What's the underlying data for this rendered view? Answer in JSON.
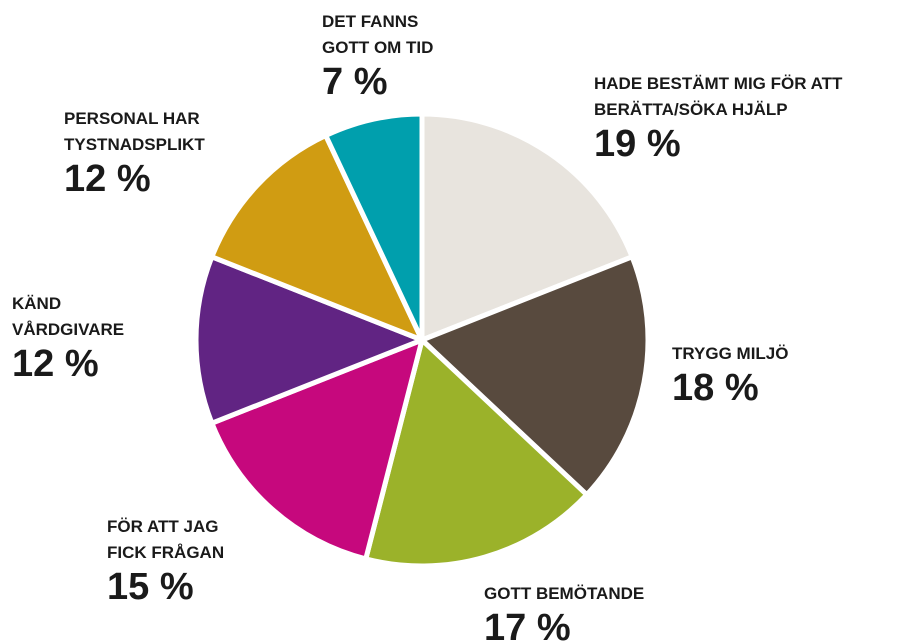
{
  "chart_data": {
    "type": "pie",
    "categories": [
      [
        "HADE BESTÄMT MIG FÖR ATT",
        "BERÄTTA/SÖKA HJÄLP"
      ],
      [
        "TRYGG MILJÖ"
      ],
      [
        "GOTT BEMÖTANDE"
      ],
      [
        "FÖR ATT JAG",
        "FICK FRÅGAN"
      ],
      [
        "KÄND",
        "VÅRDGIVARE"
      ],
      [
        "PERSONAL HAR",
        "TYSTNADSPLIKT"
      ],
      [
        "DET FANNS",
        "GOTT OM TID"
      ]
    ],
    "values": [
      19,
      18,
      17,
      15,
      12,
      12,
      7
    ],
    "value_labels": [
      "19 %",
      "18 %",
      "17 %",
      "15 %",
      "12 %",
      "12 %",
      "7 %"
    ],
    "colors": [
      "#e8e4de",
      "#584a3e",
      "#9bb22a",
      "#c6087d",
      "#612483",
      "#d09c12",
      "#009fad"
    ]
  }
}
